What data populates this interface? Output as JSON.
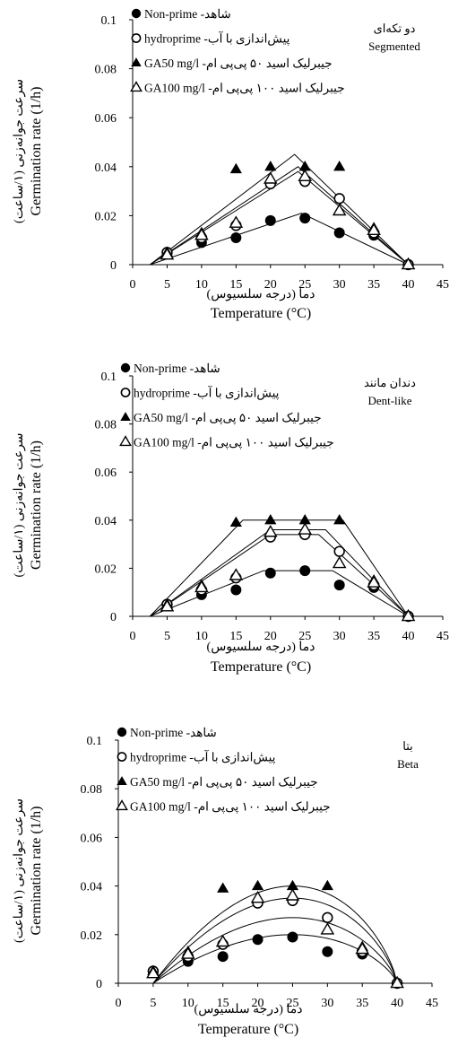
{
  "chart_data": [
    {
      "type": "scatter",
      "model": "segmented",
      "annotation_fa": "دو تکه‌ای",
      "annotation_en": "Segmented",
      "xlabel_fa": "دما (درجه سلسیوس)",
      "xlabel": "Temperature (°C)",
      "ylabel_fa": "سرعت جوانه‌زنی (۱/ساعت)",
      "ylabel": "Germination rate (1/h)",
      "xlim": [
        0,
        45
      ],
      "ylim": [
        0,
        0.1
      ],
      "xticks": [
        "0",
        "5",
        "10",
        "15",
        "20",
        "25",
        "30",
        "35",
        "40",
        "45"
      ],
      "yticks": [
        "0",
        "0.02",
        "0.04",
        "0.06",
        "0.08",
        "0.1"
      ],
      "legend_position": "top-left",
      "series": [
        {
          "name": "Non-prime",
          "name_fa": "شاهد",
          "marker": "filled-circle",
          "x": [
            5,
            10,
            15,
            20,
            25,
            30,
            35,
            40
          ],
          "y": [
            0.005,
            0.009,
            0.011,
            0.018,
            0.019,
            0.013,
            0.012,
            0
          ],
          "fit": [
            [
              2.5,
              0
            ],
            [
              24.5,
              0.021
            ],
            [
              40,
              0
            ]
          ]
        },
        {
          "name": "hydroprime",
          "name_fa": "پیش‌اندازی با آب",
          "marker": "open-circle",
          "x": [
            5,
            10,
            15,
            20,
            25,
            30,
            35,
            40
          ],
          "y": [
            0.005,
            0.011,
            0.016,
            0.033,
            0.034,
            0.027,
            0.013,
            0
          ],
          "fit": [
            [
              2.5,
              0
            ],
            [
              24,
              0.038
            ],
            [
              40,
              0
            ]
          ]
        },
        {
          "name": "GA50 mg/l",
          "name_fa": "جیبرلیک اسید ۵۰ پی‌پی ام",
          "marker": "filled-triangle",
          "x": [
            5,
            10,
            15,
            20,
            25,
            30,
            35,
            40
          ],
          "y": [
            0.005,
            0.013,
            0.039,
            0.04,
            0.04,
            0.04,
            0.015,
            0
          ],
          "fit": [
            [
              2.5,
              0
            ],
            [
              23.5,
              0.045
            ],
            [
              40,
              0
            ]
          ]
        },
        {
          "name": "GA100 mg/l",
          "name_fa": "جیبرلیک اسید ۱۰۰ پی‌پی ام",
          "marker": "open-triangle",
          "x": [
            5,
            10,
            15,
            20,
            25,
            30,
            35,
            40
          ],
          "y": [
            0.004,
            0.012,
            0.017,
            0.035,
            0.036,
            0.022,
            0.014,
            0
          ],
          "fit": [
            [
              2.5,
              0
            ],
            [
              24,
              0.04
            ],
            [
              40,
              0
            ]
          ]
        }
      ]
    },
    {
      "type": "scatter",
      "model": "dent-like",
      "annotation_fa": "دندان مانند",
      "annotation_en": "Dent-like",
      "xlabel_fa": "دما (درجه سلسیوس)",
      "xlabel": "Temperature (°C)",
      "ylabel_fa": "سرعت جوانه‌زنی (۱/ساعت)",
      "ylabel": "Germination rate (1/h)",
      "xlim": [
        0,
        45
      ],
      "ylim": [
        0,
        0.1
      ],
      "xticks": [
        "0",
        "5",
        "10",
        "15",
        "20",
        "25",
        "30",
        "35",
        "40",
        "45"
      ],
      "yticks": [
        "0",
        "0.02",
        "0.04",
        "0.06",
        "0.08",
        "0.1"
      ],
      "legend_position": "top-left",
      "series": [
        {
          "name": "Non-prime",
          "name_fa": "شاهد",
          "marker": "filled-circle",
          "x": [
            5,
            10,
            15,
            20,
            25,
            30,
            35,
            40
          ],
          "y": [
            0.005,
            0.009,
            0.011,
            0.018,
            0.019,
            0.013,
            0.012,
            0
          ],
          "fit": [
            [
              2.5,
              0
            ],
            [
              19,
              0.019
            ],
            [
              29,
              0.019
            ],
            [
              40,
              0
            ]
          ]
        },
        {
          "name": "hydroprime",
          "name_fa": "پیش‌اندازی با آب",
          "marker": "open-circle",
          "x": [
            5,
            10,
            15,
            20,
            25,
            30,
            35,
            40
          ],
          "y": [
            0.005,
            0.011,
            0.016,
            0.033,
            0.034,
            0.027,
            0.013,
            0
          ],
          "fit": [
            [
              2.5,
              0
            ],
            [
              20,
              0.034
            ],
            [
              27,
              0.034
            ],
            [
              40,
              0
            ]
          ]
        },
        {
          "name": "GA50 mg/l",
          "name_fa": "جیبرلیک اسید ۵۰ پی‌پی ام",
          "marker": "filled-triangle",
          "x": [
            5,
            10,
            15,
            20,
            25,
            30,
            35,
            40
          ],
          "y": [
            0.005,
            0.013,
            0.039,
            0.04,
            0.04,
            0.04,
            0.015,
            0
          ],
          "fit": [
            [
              2.5,
              0
            ],
            [
              16,
              0.04
            ],
            [
              30.5,
              0.04
            ],
            [
              40,
              0
            ]
          ]
        },
        {
          "name": "GA100 mg/l",
          "name_fa": "جیبرلیک اسید ۱۰۰ پی‌پی ام",
          "marker": "open-triangle",
          "x": [
            5,
            10,
            15,
            20,
            25,
            30,
            35,
            40
          ],
          "y": [
            0.004,
            0.012,
            0.017,
            0.035,
            0.036,
            0.022,
            0.014,
            0
          ],
          "fit": [
            [
              2.5,
              0
            ],
            [
              20,
              0.036
            ],
            [
              28,
              0.036
            ],
            [
              40,
              0
            ]
          ]
        }
      ]
    },
    {
      "type": "scatter",
      "model": "beta",
      "annotation_fa": "بتا",
      "annotation_en": "Beta",
      "xlabel_fa": "دما (درجه سلسیوس)",
      "xlabel": "Temperature (°C)",
      "ylabel_fa": "سرعت جوانه‌زنی (۱/ساعت)",
      "ylabel": "Germination rate (1/h)",
      "xlim": [
        0,
        45
      ],
      "ylim": [
        0,
        0.1
      ],
      "xticks": [
        "0",
        "5",
        "10",
        "15",
        "20",
        "25",
        "30",
        "35",
        "40",
        "45"
      ],
      "yticks": [
        "0",
        "0.02",
        "0.04",
        "0.06",
        "0.08",
        "0.1"
      ],
      "legend_position": "top-left",
      "series": [
        {
          "name": "Non-prime",
          "name_fa": "شاهد",
          "marker": "filled-circle",
          "x": [
            5,
            10,
            15,
            20,
            25,
            30,
            35,
            40
          ],
          "y": [
            0.005,
            0.009,
            0.011,
            0.018,
            0.019,
            0.013,
            0.012,
            0
          ],
          "curve": {
            "peak_x": 25,
            "peak_y": 0.02,
            "tb": 5,
            "tc": 40
          }
        },
        {
          "name": "hydroprime",
          "name_fa": "پیش‌اندازی با آب",
          "marker": "open-circle",
          "x": [
            5,
            10,
            15,
            20,
            25,
            30,
            35,
            40
          ],
          "y": [
            0.005,
            0.011,
            0.016,
            0.033,
            0.034,
            0.027,
            0.013,
            0
          ],
          "curve": {
            "peak_x": 25,
            "peak_y": 0.035,
            "tb": 5,
            "tc": 40
          }
        },
        {
          "name": "GA50 mg/l",
          "name_fa": "جیبرلیک اسید ۵۰ پی‌پی ام",
          "marker": "filled-triangle",
          "x": [
            5,
            10,
            15,
            20,
            25,
            30,
            35,
            40
          ],
          "y": [
            0.005,
            0.013,
            0.039,
            0.04,
            0.04,
            0.04,
            0.015,
            0
          ],
          "curve": {
            "peak_x": 25,
            "peak_y": 0.04,
            "tb": 5,
            "tc": 40
          }
        },
        {
          "name": "GA100 mg/l",
          "name_fa": "جیبرلیک اسید ۱۰۰ پی‌پی ام",
          "marker": "open-triangle",
          "x": [
            5,
            10,
            15,
            20,
            25,
            30,
            35,
            40
          ],
          "y": [
            0.004,
            0.012,
            0.017,
            0.035,
            0.036,
            0.022,
            0.014,
            0
          ],
          "curve": {
            "peak_x": 25,
            "peak_y": 0.027,
            "tb": 5,
            "tc": 40
          }
        }
      ]
    }
  ]
}
